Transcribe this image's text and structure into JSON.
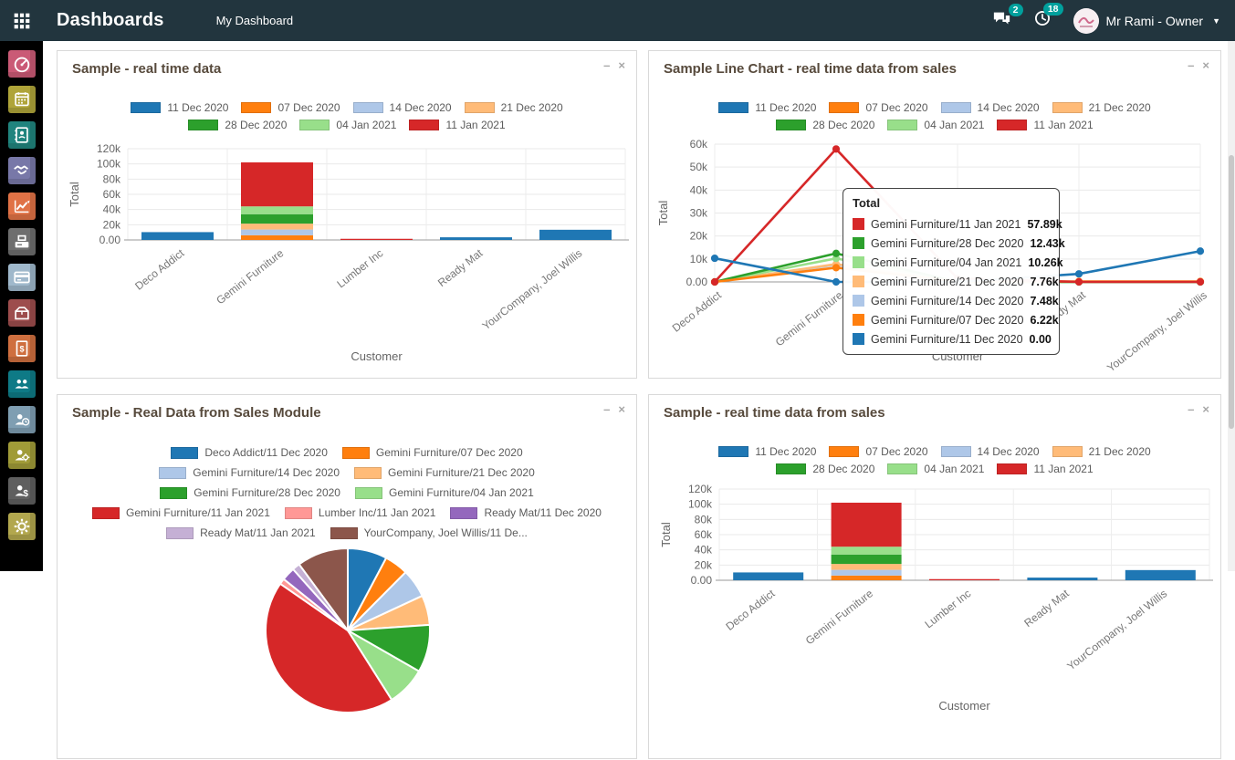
{
  "navbar": {
    "brand": "Dashboards",
    "menu_item": "My Dashboard",
    "messages_badge": "2",
    "activities_badge": "18",
    "user_name": "Mr Rami - Owner",
    "accent_color": "#00a09d",
    "background_color": "#22353e"
  },
  "sidebar": {
    "apps": [
      {
        "name": "dashboards",
        "icon": "gauge-icon",
        "color": "#ca5a76"
      },
      {
        "name": "calendar",
        "icon": "calendar-icon",
        "color": "#afa439"
      },
      {
        "name": "contacts",
        "icon": "address-book-icon",
        "color": "#20847e"
      },
      {
        "name": "crm",
        "icon": "handshake-icon",
        "color": "#7878a8"
      },
      {
        "name": "sales",
        "icon": "chart-up-icon",
        "color": "#e07246"
      },
      {
        "name": "point-of-sale",
        "icon": "cash-register-icon",
        "color": "#6e6e6e"
      },
      {
        "name": "website",
        "icon": "card-icon",
        "color": "#9fb8cb"
      },
      {
        "name": "inventory",
        "icon": "box-icon",
        "color": "#9d4d4d"
      },
      {
        "name": "invoicing",
        "icon": "invoice-icon",
        "color": "#cf6f3f"
      },
      {
        "name": "employees",
        "icon": "people-icon",
        "color": "#0e7a86"
      },
      {
        "name": "attendances",
        "icon": "person-clock-icon",
        "color": "#7f9eb2"
      },
      {
        "name": "recruitment",
        "icon": "person-gear-icon",
        "color": "#a09b38"
      },
      {
        "name": "payroll",
        "icon": "person-dollar-icon",
        "color": "#5f5f5f"
      },
      {
        "name": "settings",
        "icon": "gear-icon",
        "color": "#b2a74e"
      }
    ]
  },
  "panel_controls": {
    "minimize": "–",
    "close": "×"
  },
  "panels": [
    {
      "title": "Sample - real time data"
    },
    {
      "title": "Sample Line Chart - real time data from sales"
    },
    {
      "title": "Sample - Real Data from Sales Module"
    },
    {
      "title": "Sample - real time data from sales"
    }
  ],
  "chart_data": [
    {
      "type": "bar",
      "stacked": true,
      "title": "Sample - real time data",
      "xlabel": "Customer",
      "ylabel": "Total",
      "ylim": [
        0,
        120000
      ],
      "yticks": [
        "120k",
        "100k",
        "80k",
        "60k",
        "40k",
        "20k",
        "0.00"
      ],
      "grid": true,
      "legend_position": "top",
      "categories": [
        "Deco Addict",
        "Gemini Furniture",
        "Lumber Inc",
        "Ready Mat",
        "YourCompany, Joel Willis"
      ],
      "series": [
        {
          "name": "11 Dec 2020",
          "color": "#1f77b4",
          "values": [
            10300,
            0,
            0,
            3500,
            13400
          ]
        },
        {
          "name": "07 Dec 2020",
          "color": "#ff7f0e",
          "values": [
            0,
            6220,
            0,
            0,
            0
          ]
        },
        {
          "name": "14 Dec 2020",
          "color": "#aec7e8",
          "values": [
            0,
            7480,
            0,
            0,
            0
          ]
        },
        {
          "name": "21 Dec 2020",
          "color": "#ffbb78",
          "values": [
            0,
            7760,
            0,
            0,
            0
          ]
        },
        {
          "name": "28 Dec 2020",
          "color": "#2ca02c",
          "values": [
            0,
            12430,
            0,
            0,
            0
          ]
        },
        {
          "name": "04 Jan 2021",
          "color": "#98df8a",
          "values": [
            0,
            10260,
            0,
            0,
            0
          ]
        },
        {
          "name": "11 Jan 2021",
          "color": "#d62728",
          "values": [
            0,
            57890,
            1500,
            0,
            0
          ]
        }
      ]
    },
    {
      "type": "line",
      "title": "Sample Line Chart - real time data from sales",
      "xlabel": "Customer",
      "ylabel": "Total",
      "ylim": [
        0,
        60000
      ],
      "yticks": [
        "60k",
        "50k",
        "40k",
        "30k",
        "20k",
        "10k",
        "0.00"
      ],
      "grid": true,
      "legend_position": "top",
      "categories": [
        "Deco Addict",
        "Gemini Furniture",
        "Lumber Inc",
        "Ready Mat",
        "YourCompany, Joel Willis"
      ],
      "series": [
        {
          "name": "11 Dec 2020",
          "color": "#1f77b4",
          "values": [
            10300,
            0,
            0,
            3500,
            13400
          ]
        },
        {
          "name": "07 Dec 2020",
          "color": "#ff7f0e",
          "values": [
            0,
            6220,
            200,
            200,
            200
          ]
        },
        {
          "name": "14 Dec 2020",
          "color": "#aec7e8",
          "values": [
            0,
            7480,
            0,
            0,
            0
          ]
        },
        {
          "name": "21 Dec 2020",
          "color": "#ffbb78",
          "values": [
            0,
            7760,
            0,
            0,
            0
          ]
        },
        {
          "name": "28 Dec 2020",
          "color": "#2ca02c",
          "values": [
            0,
            12430,
            0,
            0,
            0
          ]
        },
        {
          "name": "04 Jan 2021",
          "color": "#98df8a",
          "values": [
            0,
            10260,
            0,
            0,
            0
          ]
        },
        {
          "name": "11 Jan 2021",
          "color": "#d62728",
          "values": [
            0,
            57890,
            1500,
            0,
            0
          ]
        }
      ],
      "tooltip": {
        "title": "Total",
        "rows": [
          {
            "color": "#d62728",
            "label": "Gemini Furniture/11 Jan 2021",
            "value": "57.89k"
          },
          {
            "color": "#2ca02c",
            "label": "Gemini Furniture/28 Dec 2020",
            "value": "12.43k"
          },
          {
            "color": "#98df8a",
            "label": "Gemini Furniture/04 Jan 2021",
            "value": "10.26k"
          },
          {
            "color": "#ffbb78",
            "label": "Gemini Furniture/21 Dec 2020",
            "value": "7.76k"
          },
          {
            "color": "#aec7e8",
            "label": "Gemini Furniture/14 Dec 2020",
            "value": "7.48k"
          },
          {
            "color": "#ff7f0e",
            "label": "Gemini Furniture/07 Dec 2020",
            "value": "6.22k"
          },
          {
            "color": "#1f77b4",
            "label": "Gemini Furniture/11 Dec 2020",
            "value": "0.00"
          }
        ]
      }
    },
    {
      "type": "pie",
      "title": "Sample - Real Data from Sales Module",
      "legend_position": "top",
      "slices": [
        {
          "label": "Deco Addict/11 Dec 2020",
          "color": "#1f77b4",
          "value": 10300
        },
        {
          "label": "Gemini Furniture/07 Dec 2020",
          "color": "#ff7f0e",
          "value": 6220
        },
        {
          "label": "Gemini Furniture/14 Dec 2020",
          "color": "#aec7e8",
          "value": 7480
        },
        {
          "label": "Gemini Furniture/21 Dec 2020",
          "color": "#ffbb78",
          "value": 7760
        },
        {
          "label": "Gemini Furniture/28 Dec 2020",
          "color": "#2ca02c",
          "value": 12430
        },
        {
          "label": "Gemini Furniture/04 Jan 2021",
          "color": "#98df8a",
          "value": 10260
        },
        {
          "label": "Gemini Furniture/11 Jan 2021",
          "color": "#d62728",
          "value": 57890
        },
        {
          "label": "Lumber Inc/11 Jan 2021",
          "color": "#ff9896",
          "value": 1500
        },
        {
          "label": "Ready Mat/11 Dec 2020",
          "color": "#9467bd",
          "value": 3500
        },
        {
          "label": "Ready Mat/11 Jan 2021",
          "color": "#c5b0d5",
          "value": 2000
        },
        {
          "label": "YourCompany, Joel Willis/11 De...",
          "color": "#8c564b",
          "value": 13400
        }
      ],
      "legend_rows": [
        [
          0,
          1
        ],
        [
          2,
          3
        ],
        [
          4,
          5
        ],
        [
          6,
          7,
          8
        ],
        [
          9,
          10
        ]
      ]
    },
    {
      "type": "bar",
      "stacked": true,
      "title": "Sample - real time data from sales",
      "xlabel": "Customer",
      "ylabel": "Total",
      "ylim": [
        0,
        120000
      ],
      "yticks": [
        "120k",
        "100k",
        "80k",
        "60k",
        "40k",
        "20k",
        "0.00"
      ],
      "grid": true,
      "legend_position": "top",
      "categories": [
        "Deco Addict",
        "Gemini Furniture",
        "Lumber Inc",
        "Ready Mat",
        "YourCompany, Joel Willis"
      ],
      "series": [
        {
          "name": "11 Dec 2020",
          "color": "#1f77b4",
          "values": [
            10300,
            0,
            0,
            3500,
            13400
          ]
        },
        {
          "name": "07 Dec 2020",
          "color": "#ff7f0e",
          "values": [
            0,
            6220,
            0,
            0,
            0
          ]
        },
        {
          "name": "14 Dec 2020",
          "color": "#aec7e8",
          "values": [
            0,
            7480,
            0,
            0,
            0
          ]
        },
        {
          "name": "21 Dec 2020",
          "color": "#ffbb78",
          "values": [
            0,
            7760,
            0,
            0,
            0
          ]
        },
        {
          "name": "28 Dec 2020",
          "color": "#2ca02c",
          "values": [
            0,
            12430,
            0,
            0,
            0
          ]
        },
        {
          "name": "04 Jan 2021",
          "color": "#98df8a",
          "values": [
            0,
            10260,
            0,
            0,
            0
          ]
        },
        {
          "name": "11 Jan 2021",
          "color": "#d62728",
          "values": [
            0,
            57890,
            1500,
            0,
            0
          ]
        }
      ]
    }
  ]
}
